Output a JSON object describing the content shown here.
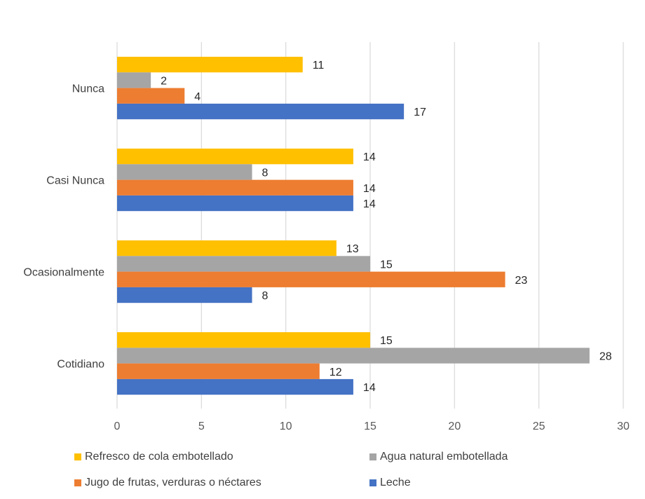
{
  "chart_data": {
    "type": "bar",
    "orientation": "horizontal",
    "title": "",
    "xlabel": "",
    "ylabel": "",
    "xlim": [
      0,
      30
    ],
    "x_ticks": [
      0,
      5,
      10,
      15,
      20,
      25,
      30
    ],
    "grid": true,
    "legend_position": "bottom",
    "categories": [
      "Nunca",
      "Casi Nunca",
      "Ocasionalmente",
      "Cotidiano"
    ],
    "series": [
      {
        "name": "Refresco de cola embotellado",
        "color": "#FFC000",
        "values": [
          11,
          14,
          13,
          15
        ]
      },
      {
        "name": "Agua natural embotellada",
        "color": "#A5A5A5",
        "values": [
          2,
          8,
          15,
          28
        ]
      },
      {
        "name": "Jugo de frutas, verduras o néctares",
        "color": "#ED7D31",
        "values": [
          4,
          14,
          23,
          12
        ]
      },
      {
        "name": "Leche",
        "color": "#4472C4",
        "values": [
          17,
          14,
          8,
          14
        ]
      }
    ],
    "data_labels": true
  }
}
